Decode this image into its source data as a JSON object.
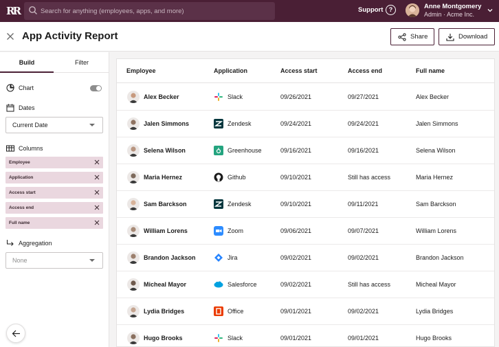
{
  "topbar": {
    "logo": "RR",
    "search_placeholder": "Search for anything (employees, apps, and more)",
    "support_label": "Support",
    "help_icon": "?",
    "user_name": "Anne Montgomery",
    "user_org": "Admin · Acme Inc."
  },
  "header": {
    "title": "App Activity Report",
    "share_label": "Share",
    "download_label": "Download"
  },
  "sidebar": {
    "tabs": [
      "Build",
      "Filter"
    ],
    "chart_label": "Chart",
    "dates_label": "Dates",
    "dates_value": "Current Date",
    "columns_label": "Columns",
    "column_chips": [
      "Employee",
      "Application",
      "Access start",
      "Access end",
      "Full name"
    ],
    "aggregation_label": "Aggregation",
    "aggregation_placeholder": "None"
  },
  "table": {
    "headers": [
      "Employee",
      "Application",
      "Access start",
      "Access end",
      "Full name"
    ],
    "rows": [
      {
        "employee": "Alex Becker",
        "app": "Slack",
        "start": "09/26/2021",
        "end": "09/27/2021",
        "full": "Alex Becker"
      },
      {
        "employee": "Jalen Simmons",
        "app": "Zendesk",
        "start": "09/24/2021",
        "end": "09/24/2021",
        "full": "Jalen Simmons"
      },
      {
        "employee": "Selena Wilson",
        "app": "Greenhouse",
        "start": "09/16/2021",
        "end": "09/16/2021",
        "full": "Selena Wilson"
      },
      {
        "employee": "Maria Hernez",
        "app": "Github",
        "start": "09/10/2021",
        "end": "Still has access",
        "full": "Maria Hernez"
      },
      {
        "employee": "Sam Barckson",
        "app": "Zendesk",
        "start": "09/10/2021",
        "end": "09/11/2021",
        "full": "Sam Barckson"
      },
      {
        "employee": "William Lorens",
        "app": "Zoom",
        "start": "09/06/2021",
        "end": "09/07/2021",
        "full": "William Lorens"
      },
      {
        "employee": "Brandon Jackson",
        "app": "Jira",
        "start": "09/02/2021",
        "end": "09/02/2021",
        "full": "Brandon Jackson"
      },
      {
        "employee": "Micheal Mayor",
        "app": "Salesforce",
        "start": "09/02/2021",
        "end": "Still has access",
        "full": "Micheal Mayor"
      },
      {
        "employee": "Lydia Bridges",
        "app": "Office",
        "start": "09/01/2021",
        "end": "09/02/2021",
        "full": "Lydia Bridges"
      },
      {
        "employee": "Hugo Brooks",
        "app": "Slack",
        "start": "09/01/2021",
        "end": "09/01/2021",
        "full": "Hugo Brooks"
      }
    ]
  },
  "colors": {
    "brand": "#4a1f35",
    "chip": "#ead7df"
  }
}
